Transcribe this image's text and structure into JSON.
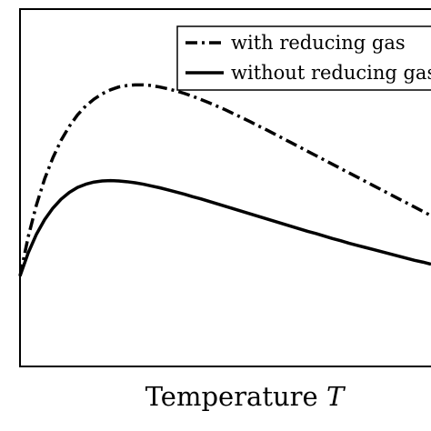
{
  "chart_data": {
    "type": "line",
    "title": "",
    "xlabel": "Temperature",
    "xlabel_var": "T",
    "ylabel": "",
    "xlim": [
      0,
      1
    ],
    "ylim": [
      0,
      1
    ],
    "grid": false,
    "tick_labels": false,
    "legend_position": "top-right",
    "series": [
      {
        "name": "with reducing gas",
        "style": "dashdot",
        "color": "#000000",
        "x": [
          0.0,
          0.02,
          0.04,
          0.06,
          0.08,
          0.1,
          0.12,
          0.14,
          0.16,
          0.18,
          0.2,
          0.22,
          0.24,
          0.26,
          0.28,
          0.3,
          0.32,
          0.34,
          0.36,
          0.38,
          0.4,
          0.42,
          0.44,
          0.46,
          0.48,
          0.5,
          0.52,
          0.54,
          0.56,
          0.58,
          0.6,
          0.62,
          0.64,
          0.66,
          0.68,
          0.7,
          0.72,
          0.74,
          0.76,
          0.78,
          0.8,
          0.82,
          0.84,
          0.86,
          0.88,
          0.9,
          0.92,
          0.94,
          0.96,
          0.98,
          1.0
        ],
        "y": [
          0.253,
          0.363,
          0.452,
          0.525,
          0.584,
          0.633,
          0.672,
          0.704,
          0.729,
          0.748,
          0.763,
          0.774,
          0.782,
          0.786,
          0.788,
          0.788,
          0.786,
          0.782,
          0.777,
          0.771,
          0.764,
          0.756,
          0.747,
          0.738,
          0.728,
          0.718,
          0.707,
          0.696,
          0.685,
          0.673,
          0.662,
          0.65,
          0.638,
          0.626,
          0.614,
          0.602,
          0.59,
          0.578,
          0.566,
          0.554,
          0.542,
          0.53,
          0.518,
          0.506,
          0.494,
          0.482,
          0.47,
          0.458,
          0.446,
          0.434,
          0.422
        ]
      },
      {
        "name": "without reducing gas",
        "style": "solid",
        "color": "#000000",
        "x": [
          0.0,
          0.02,
          0.04,
          0.06,
          0.08,
          0.1,
          0.12,
          0.14,
          0.16,
          0.18,
          0.2,
          0.22,
          0.24,
          0.26,
          0.28,
          0.3,
          0.32,
          0.34,
          0.36,
          0.38,
          0.4,
          0.42,
          0.44,
          0.46,
          0.48,
          0.5,
          0.52,
          0.54,
          0.56,
          0.58,
          0.6,
          0.62,
          0.64,
          0.66,
          0.68,
          0.7,
          0.72,
          0.74,
          0.76,
          0.78,
          0.8,
          0.82,
          0.84,
          0.86,
          0.88,
          0.9,
          0.92,
          0.94,
          0.96,
          0.98,
          1.0
        ],
        "y": [
          0.253,
          0.318,
          0.37,
          0.411,
          0.443,
          0.468,
          0.487,
          0.501,
          0.51,
          0.516,
          0.519,
          0.52,
          0.519,
          0.517,
          0.514,
          0.51,
          0.505,
          0.5,
          0.494,
          0.488,
          0.482,
          0.475,
          0.469,
          0.462,
          0.455,
          0.448,
          0.441,
          0.434,
          0.427,
          0.42,
          0.413,
          0.406,
          0.399,
          0.392,
          0.385,
          0.378,
          0.372,
          0.365,
          0.358,
          0.352,
          0.345,
          0.339,
          0.333,
          0.327,
          0.321,
          0.315,
          0.309,
          0.303,
          0.297,
          0.292,
          0.286
        ]
      }
    ]
  }
}
